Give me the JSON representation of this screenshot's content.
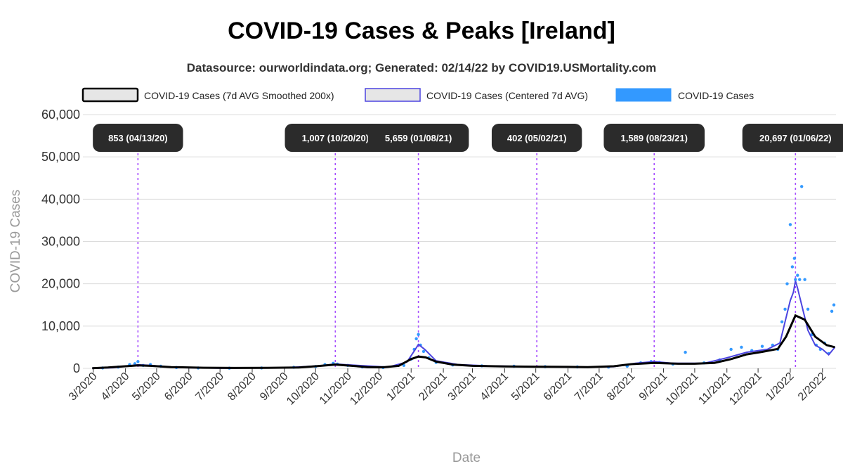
{
  "chart_data": {
    "type": "line",
    "title": "COVID-19 Cases & Peaks [Ireland]",
    "subtitle": "Datasource: ourworldindata.org; Generated: 02/14/22 by COVID19.USMortality.com",
    "xlabel": "Date",
    "ylabel": "COVID-19 Cases",
    "ylim": [
      0,
      60000
    ],
    "y_ticks": [
      0,
      10000,
      20000,
      30000,
      40000,
      50000,
      60000
    ],
    "y_tick_labels": [
      "0",
      "10,000",
      "20,000",
      "30,000",
      "40,000",
      "50,000",
      "60,000"
    ],
    "x_range": [
      "2020-02-20",
      "2022-02-14"
    ],
    "x_ticks": [
      "2020-03-01",
      "2020-04-01",
      "2020-05-01",
      "2020-06-01",
      "2020-07-01",
      "2020-08-01",
      "2020-09-01",
      "2020-10-01",
      "2020-11-01",
      "2020-12-01",
      "2021-01-01",
      "2021-02-01",
      "2021-03-01",
      "2021-04-01",
      "2021-05-01",
      "2021-06-01",
      "2021-07-01",
      "2021-08-01",
      "2021-09-01",
      "2021-10-01",
      "2021-11-01",
      "2021-12-01",
      "2022-01-01",
      "2022-02-01"
    ],
    "x_tick_labels": [
      "3/2020",
      "4/2020",
      "5/2020",
      "6/2020",
      "7/2020",
      "8/2020",
      "9/2020",
      "10/2020",
      "11/2020",
      "12/2020",
      "1/2021",
      "2/2021",
      "3/2021",
      "4/2021",
      "5/2021",
      "6/2021",
      "7/2021",
      "8/2021",
      "9/2021",
      "10/2021",
      "11/2021",
      "12/2021",
      "1/2022",
      "2/2022"
    ],
    "grid": true,
    "legend_position": "top",
    "legend": [
      {
        "label": "COVID-19 Cases (7d AVG Smoothed 200x)",
        "swatch_fill": "#e6e6e6",
        "swatch_stroke": "#000000"
      },
      {
        "label": "COVID-19 Cases (Centered 7d AVG)",
        "swatch_fill": "#e6e6e6",
        "swatch_stroke": "#4b44e0"
      },
      {
        "label": "COVID-19 Cases",
        "swatch_fill": "#3399ff",
        "swatch_stroke": "#3399ff"
      }
    ],
    "colors": {
      "smoothed": "#000000",
      "centered_avg": "#4b44e0",
      "cases": "#3399ff",
      "peak_line": "#a64dff",
      "peak_label_bg": "#2b2b2b",
      "peak_label_text": "#ffffff"
    },
    "peaks": [
      {
        "date": "2020-04-13",
        "value": 853,
        "label": "853 (04/13/20)"
      },
      {
        "date": "2020-10-20",
        "value": 1007,
        "label": "1,007 (10/20/20)"
      },
      {
        "date": "2021-01-08",
        "value": 5659,
        "label": "5,659 (01/08/21)"
      },
      {
        "date": "2021-05-02",
        "value": 402,
        "label": "402 (05/02/21)"
      },
      {
        "date": "2021-08-23",
        "value": 1589,
        "label": "1,589 (08/23/21)"
      },
      {
        "date": "2022-01-06",
        "value": 20697,
        "label": "20,697 (01/06/22)"
      }
    ],
    "series": [
      {
        "name": "COVID-19 Cases (7d AVG Smoothed 200x)",
        "x": [
          "2020-02-29",
          "2020-03-15",
          "2020-04-01",
          "2020-04-13",
          "2020-04-25",
          "2020-05-15",
          "2020-06-15",
          "2020-07-15",
          "2020-08-15",
          "2020-09-15",
          "2020-10-01",
          "2020-10-20",
          "2020-11-05",
          "2020-11-20",
          "2020-12-05",
          "2020-12-20",
          "2021-01-01",
          "2021-01-08",
          "2021-01-15",
          "2021-01-25",
          "2021-02-10",
          "2021-03-01",
          "2021-04-01",
          "2021-05-02",
          "2021-06-01",
          "2021-06-20",
          "2021-07-15",
          "2021-08-01",
          "2021-08-23",
          "2021-09-15",
          "2021-10-01",
          "2021-10-20",
          "2021-11-05",
          "2021-11-20",
          "2021-12-05",
          "2021-12-20",
          "2021-12-28",
          "2022-01-06",
          "2022-01-15",
          "2022-01-25",
          "2022-02-05",
          "2022-02-13"
        ],
        "y": [
          50,
          200,
          500,
          700,
          600,
          300,
          150,
          100,
          120,
          200,
          500,
          900,
          600,
          300,
          250,
          600,
          2200,
          2800,
          2600,
          1600,
          900,
          600,
          450,
          400,
          350,
          300,
          500,
          1000,
          1300,
          1100,
          1100,
          1300,
          2200,
          3300,
          3900,
          4600,
          7500,
          12500,
          11500,
          7500,
          5500,
          5000
        ]
      },
      {
        "name": "COVID-19 Cases (Centered 7d AVG)",
        "x": [
          "2020-02-29",
          "2020-03-20",
          "2020-04-05",
          "2020-04-13",
          "2020-04-25",
          "2020-05-20",
          "2020-07-01",
          "2020-09-01",
          "2020-10-05",
          "2020-10-20",
          "2020-11-10",
          "2020-12-10",
          "2020-12-28",
          "2021-01-05",
          "2021-01-08",
          "2021-01-14",
          "2021-01-25",
          "2021-02-15",
          "2021-03-15",
          "2021-05-02",
          "2021-06-15",
          "2021-07-15",
          "2021-08-05",
          "2021-08-23",
          "2021-09-10",
          "2021-10-10",
          "2021-11-01",
          "2021-11-20",
          "2021-12-10",
          "2021-12-22",
          "2021-12-27",
          "2022-01-01",
          "2022-01-04",
          "2022-01-06",
          "2022-01-08",
          "2022-01-10",
          "2022-01-12",
          "2022-01-18",
          "2022-01-25",
          "2022-02-01",
          "2022-02-07",
          "2022-02-13"
        ],
        "y": [
          0,
          150,
          600,
          853,
          700,
          200,
          50,
          150,
          600,
          1007,
          700,
          300,
          1500,
          4500,
          5659,
          4500,
          1800,
          900,
          600,
          402,
          300,
          400,
          1200,
          1589,
          1200,
          1200,
          2500,
          3800,
          4500,
          6000,
          11000,
          16000,
          18000,
          20697,
          19000,
          17000,
          15000,
          9000,
          5500,
          4500,
          3200,
          5000
        ]
      },
      {
        "name": "COVID-19 Cases",
        "x": [
          "2020-03-10",
          "2020-03-25",
          "2020-04-05",
          "2020-04-10",
          "2020-04-13",
          "2020-04-18",
          "2020-04-25",
          "2020-05-05",
          "2020-05-20",
          "2020-06-10",
          "2020-07-10",
          "2020-08-10",
          "2020-09-10",
          "2020-10-01",
          "2020-10-10",
          "2020-10-18",
          "2020-10-22",
          "2020-11-01",
          "2020-11-15",
          "2020-12-05",
          "2020-12-25",
          "2021-01-01",
          "2021-01-04",
          "2021-01-06",
          "2021-01-08",
          "2021-01-10",
          "2021-01-13",
          "2021-01-18",
          "2021-01-25",
          "2021-02-10",
          "2021-03-10",
          "2021-04-10",
          "2021-05-10",
          "2021-06-10",
          "2021-07-10",
          "2021-07-28",
          "2021-08-10",
          "2021-08-20",
          "2021-08-28",
          "2021-09-10",
          "2021-09-22",
          "2021-10-10",
          "2021-10-25",
          "2021-11-05",
          "2021-11-15",
          "2021-11-25",
          "2021-12-05",
          "2021-12-15",
          "2021-12-20",
          "2021-12-24",
          "2021-12-27",
          "2021-12-29",
          "2022-01-01",
          "2022-01-03",
          "2022-01-05",
          "2022-01-06",
          "2022-01-08",
          "2022-01-10",
          "2022-01-12",
          "2022-01-15",
          "2022-01-18",
          "2022-01-22",
          "2022-01-26",
          "2022-01-30",
          "2022-02-03",
          "2022-02-07",
          "2022-02-10",
          "2022-02-12"
        ],
        "y": [
          100,
          300,
          900,
          1100,
          1600,
          700,
          900,
          500,
          200,
          100,
          50,
          100,
          250,
          450,
          900,
          1200,
          1000,
          700,
          350,
          200,
          700,
          2200,
          4500,
          7000,
          8000,
          5500,
          4000,
          2500,
          1400,
          800,
          600,
          500,
          400,
          350,
          300,
          500,
          1300,
          1600,
          1400,
          1000,
          3800,
          1300,
          2000,
          4500,
          5000,
          4200,
          5200,
          5500,
          4500,
          11000,
          14000,
          20000,
          34000,
          24000,
          26000,
          21000,
          22000,
          21000,
          43000,
          21000,
          14000,
          8000,
          5500,
          4500,
          6000,
          3500,
          13500,
          15000
        ]
      }
    ]
  }
}
